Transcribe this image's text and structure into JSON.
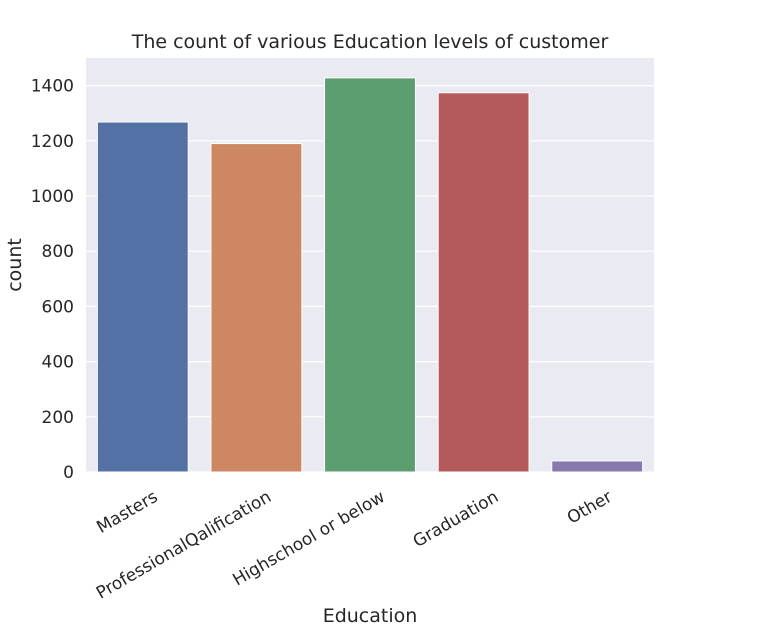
{
  "chart_data": {
    "type": "bar",
    "title": "The count of various Education levels of customer",
    "xlabel": "Education",
    "ylabel": "count",
    "categories": [
      "Masters",
      "ProfessionalQalification",
      "Highschool or below",
      "Graduation",
      "Other"
    ],
    "values": [
      1268,
      1190,
      1428,
      1374,
      40
    ],
    "ylim": [
      0,
      1500
    ],
    "yticks": [
      0,
      200,
      400,
      600,
      800,
      1000,
      1200,
      1400
    ],
    "grid": true,
    "colors": [
      "#5471a6",
      "#cd8762",
      "#5d9e71",
      "#b45a5d",
      "#8779ac"
    ]
  }
}
